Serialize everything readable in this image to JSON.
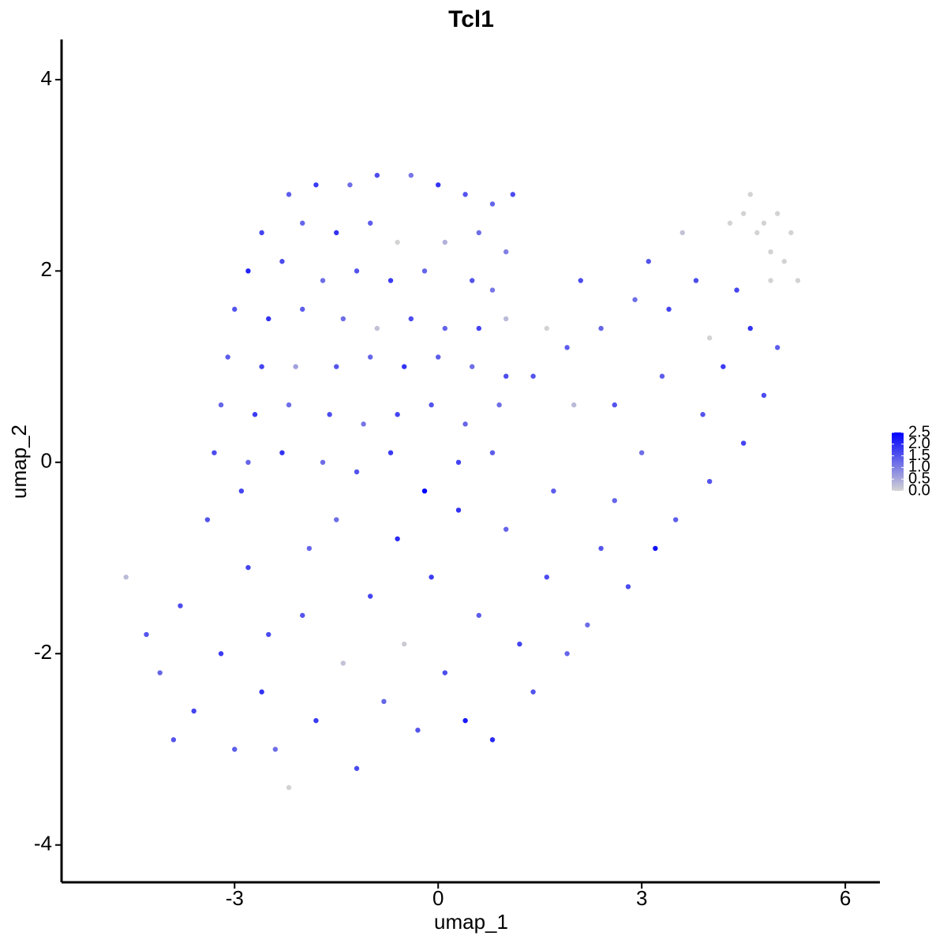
{
  "chart_data": {
    "type": "scatter",
    "title": "Tcl1",
    "xlabel": "umap_1",
    "ylabel": "umap_2",
    "xlim": [
      -5.55,
      6.51
    ],
    "ylim": [
      -4.39,
      4.42
    ],
    "xticks": [
      -3,
      0,
      3,
      6
    ],
    "yticks": [
      -4,
      -2,
      0,
      2,
      4
    ],
    "low_color": "#d3d3d3",
    "high_color": "#0000ff",
    "colorbar_lim": [
      0,
      2.5
    ],
    "colorbar_ticks": [
      {
        "value": 0,
        "label": "0.0"
      },
      0.5,
      {
        "value": 1,
        "label": "1.0"
      },
      1.5,
      {
        "value": 2,
        "label": "2.0"
      },
      2.5
    ],
    "x": [
      -2.2,
      -1.8,
      -1.3,
      -0.9,
      -0.4,
      0.0,
      0.4,
      0.8,
      1.1,
      -2.6,
      -2.0,
      -1.5,
      -1.0,
      -0.6,
      0.1,
      0.6,
      1.0,
      -2.8,
      -2.3,
      -1.7,
      -1.2,
      -0.7,
      -0.2,
      0.5,
      0.8,
      -3.0,
      -2.5,
      -2.0,
      -1.4,
      -0.9,
      -0.4,
      0.1,
      0.6,
      1.0,
      -3.1,
      -2.6,
      -2.1,
      -1.5,
      -1.0,
      -0.5,
      0.0,
      0.5,
      1.0,
      -3.2,
      -2.7,
      -2.2,
      -1.6,
      -1.1,
      -0.6,
      -0.1,
      0.4,
      0.9,
      -3.3,
      -2.8,
      -2.3,
      -1.7,
      -1.2,
      -0.7,
      -0.2,
      0.3,
      0.8,
      -4.6,
      -4.3,
      -4.1,
      -3.8,
      -3.6,
      -3.4,
      -3.2,
      -3.0,
      -2.8,
      -2.6,
      -2.4,
      -2.2,
      -2.0,
      -1.8,
      -1.5,
      -1.4,
      -1.2,
      -1.0,
      -0.8,
      -0.6,
      -0.5,
      -0.3,
      -0.1,
      0.1,
      0.3,
      0.4,
      0.6,
      0.8,
      1.0,
      1.2,
      1.4,
      1.6,
      1.9,
      2.2,
      2.4,
      1.7,
      -2.9,
      -3.9,
      -2.5,
      -1.9,
      1.4,
      1.6,
      1.9,
      2.1,
      2.4,
      2.0,
      2.6,
      2.9,
      3.1,
      3.4,
      3.3,
      3.6,
      3.8,
      4.0,
      3.9,
      4.2,
      4.4,
      4.6,
      4.8,
      5.0,
      4.5,
      4.0,
      3.5,
      3.2,
      2.8,
      2.6,
      3.0,
      4.5,
      4.7,
      4.9,
      5.1,
      4.3,
      4.6,
      5.2,
      4.9,
      5.3,
      5.0,
      4.8
    ],
    "y": [
      2.8,
      2.9,
      2.9,
      3.0,
      3.0,
      2.9,
      2.8,
      2.7,
      2.8,
      2.4,
      2.5,
      2.4,
      2.5,
      2.3,
      2.3,
      2.4,
      2.2,
      2.0,
      2.1,
      1.9,
      2.0,
      1.9,
      2.0,
      1.9,
      1.8,
      1.6,
      1.5,
      1.6,
      1.5,
      1.4,
      1.5,
      1.4,
      1.4,
      1.5,
      1.1,
      1.0,
      1.0,
      1.0,
      1.1,
      1.0,
      1.1,
      1.0,
      0.9,
      0.6,
      0.5,
      0.6,
      0.5,
      0.4,
      0.5,
      0.6,
      0.4,
      0.6,
      0.1,
      0.0,
      0.1,
      0.0,
      -0.1,
      0.1,
      -0.3,
      0.0,
      0.1,
      -1.2,
      -1.8,
      -2.2,
      -1.5,
      -2.6,
      -0.6,
      -2.0,
      -3.0,
      -1.1,
      -2.4,
      -3.0,
      -3.4,
      -1.6,
      -2.7,
      -0.6,
      -2.1,
      -3.2,
      -1.4,
      -2.5,
      -0.8,
      -1.9,
      -2.8,
      -1.2,
      -2.2,
      -0.5,
      -2.7,
      -1.6,
      -2.9,
      -0.7,
      -1.9,
      -2.4,
      -1.2,
      -2.0,
      -1.7,
      -0.9,
      -0.3,
      -0.3,
      -2.9,
      -1.8,
      -0.9,
      0.9,
      1.4,
      1.2,
      1.9,
      1.4,
      0.6,
      0.6,
      1.7,
      2.1,
      1.6,
      0.9,
      2.4,
      1.9,
      1.3,
      0.5,
      1.0,
      1.8,
      1.4,
      0.7,
      1.2,
      0.2,
      -0.2,
      -0.6,
      -0.9,
      -1.3,
      -0.4,
      0.1,
      2.6,
      2.4,
      2.2,
      2.1,
      2.5,
      2.8,
      2.4,
      1.9,
      1.9,
      2.6,
      2.5
    ],
    "values": [
      1.4,
      1.8,
      1.2,
      1.6,
      1.1,
      1.9,
      1.5,
      1.3,
      1.6,
      1.7,
      1.3,
      1.9,
      1.4,
      0.0,
      0.4,
      1.2,
      1.0,
      2.1,
      1.6,
      1.2,
      1.5,
      1.8,
      1.3,
      1.5,
      1.1,
      1.5,
      1.9,
      1.4,
      1.2,
      0.2,
      1.6,
      1.3,
      1.7,
      0.3,
      1.4,
      1.7,
      0.6,
      1.5,
      1.3,
      1.9,
      1.4,
      1.2,
      1.6,
      1.3,
      1.8,
      1.2,
      1.6,
      1.1,
      1.7,
      1.5,
      1.3,
      1.2,
      1.6,
      1.3,
      1.9,
      1.2,
      1.5,
      1.8,
      2.5,
      1.7,
      1.4,
      0.3,
      1.5,
      1.3,
      1.6,
      1.7,
      1.5,
      1.8,
      1.4,
      1.7,
      1.9,
      1.2,
      0.0,
      1.5,
      1.8,
      1.2,
      0.2,
      1.6,
      1.7,
      1.3,
      2.0,
      0.1,
      1.5,
      1.8,
      1.6,
      1.9,
      2.2,
      1.4,
      2.0,
      1.3,
      1.7,
      1.5,
      1.6,
      1.3,
      1.2,
      1.5,
      1.4,
      1.7,
      1.5,
      1.6,
      1.3,
      1.5,
      0.0,
      1.4,
      1.6,
      1.3,
      0.3,
      1.5,
      1.2,
      1.5,
      1.7,
      1.4,
      0.2,
      1.6,
      0.0,
      1.5,
      1.8,
      1.7,
      1.9,
      1.6,
      1.4,
      1.7,
      1.5,
      1.4,
      2.3,
      1.6,
      1.3,
      1.2,
      0.0,
      0.0,
      0.0,
      0.0,
      0.0,
      0.0,
      0.0,
      0.0,
      0.0,
      0.0,
      0.0
    ]
  }
}
